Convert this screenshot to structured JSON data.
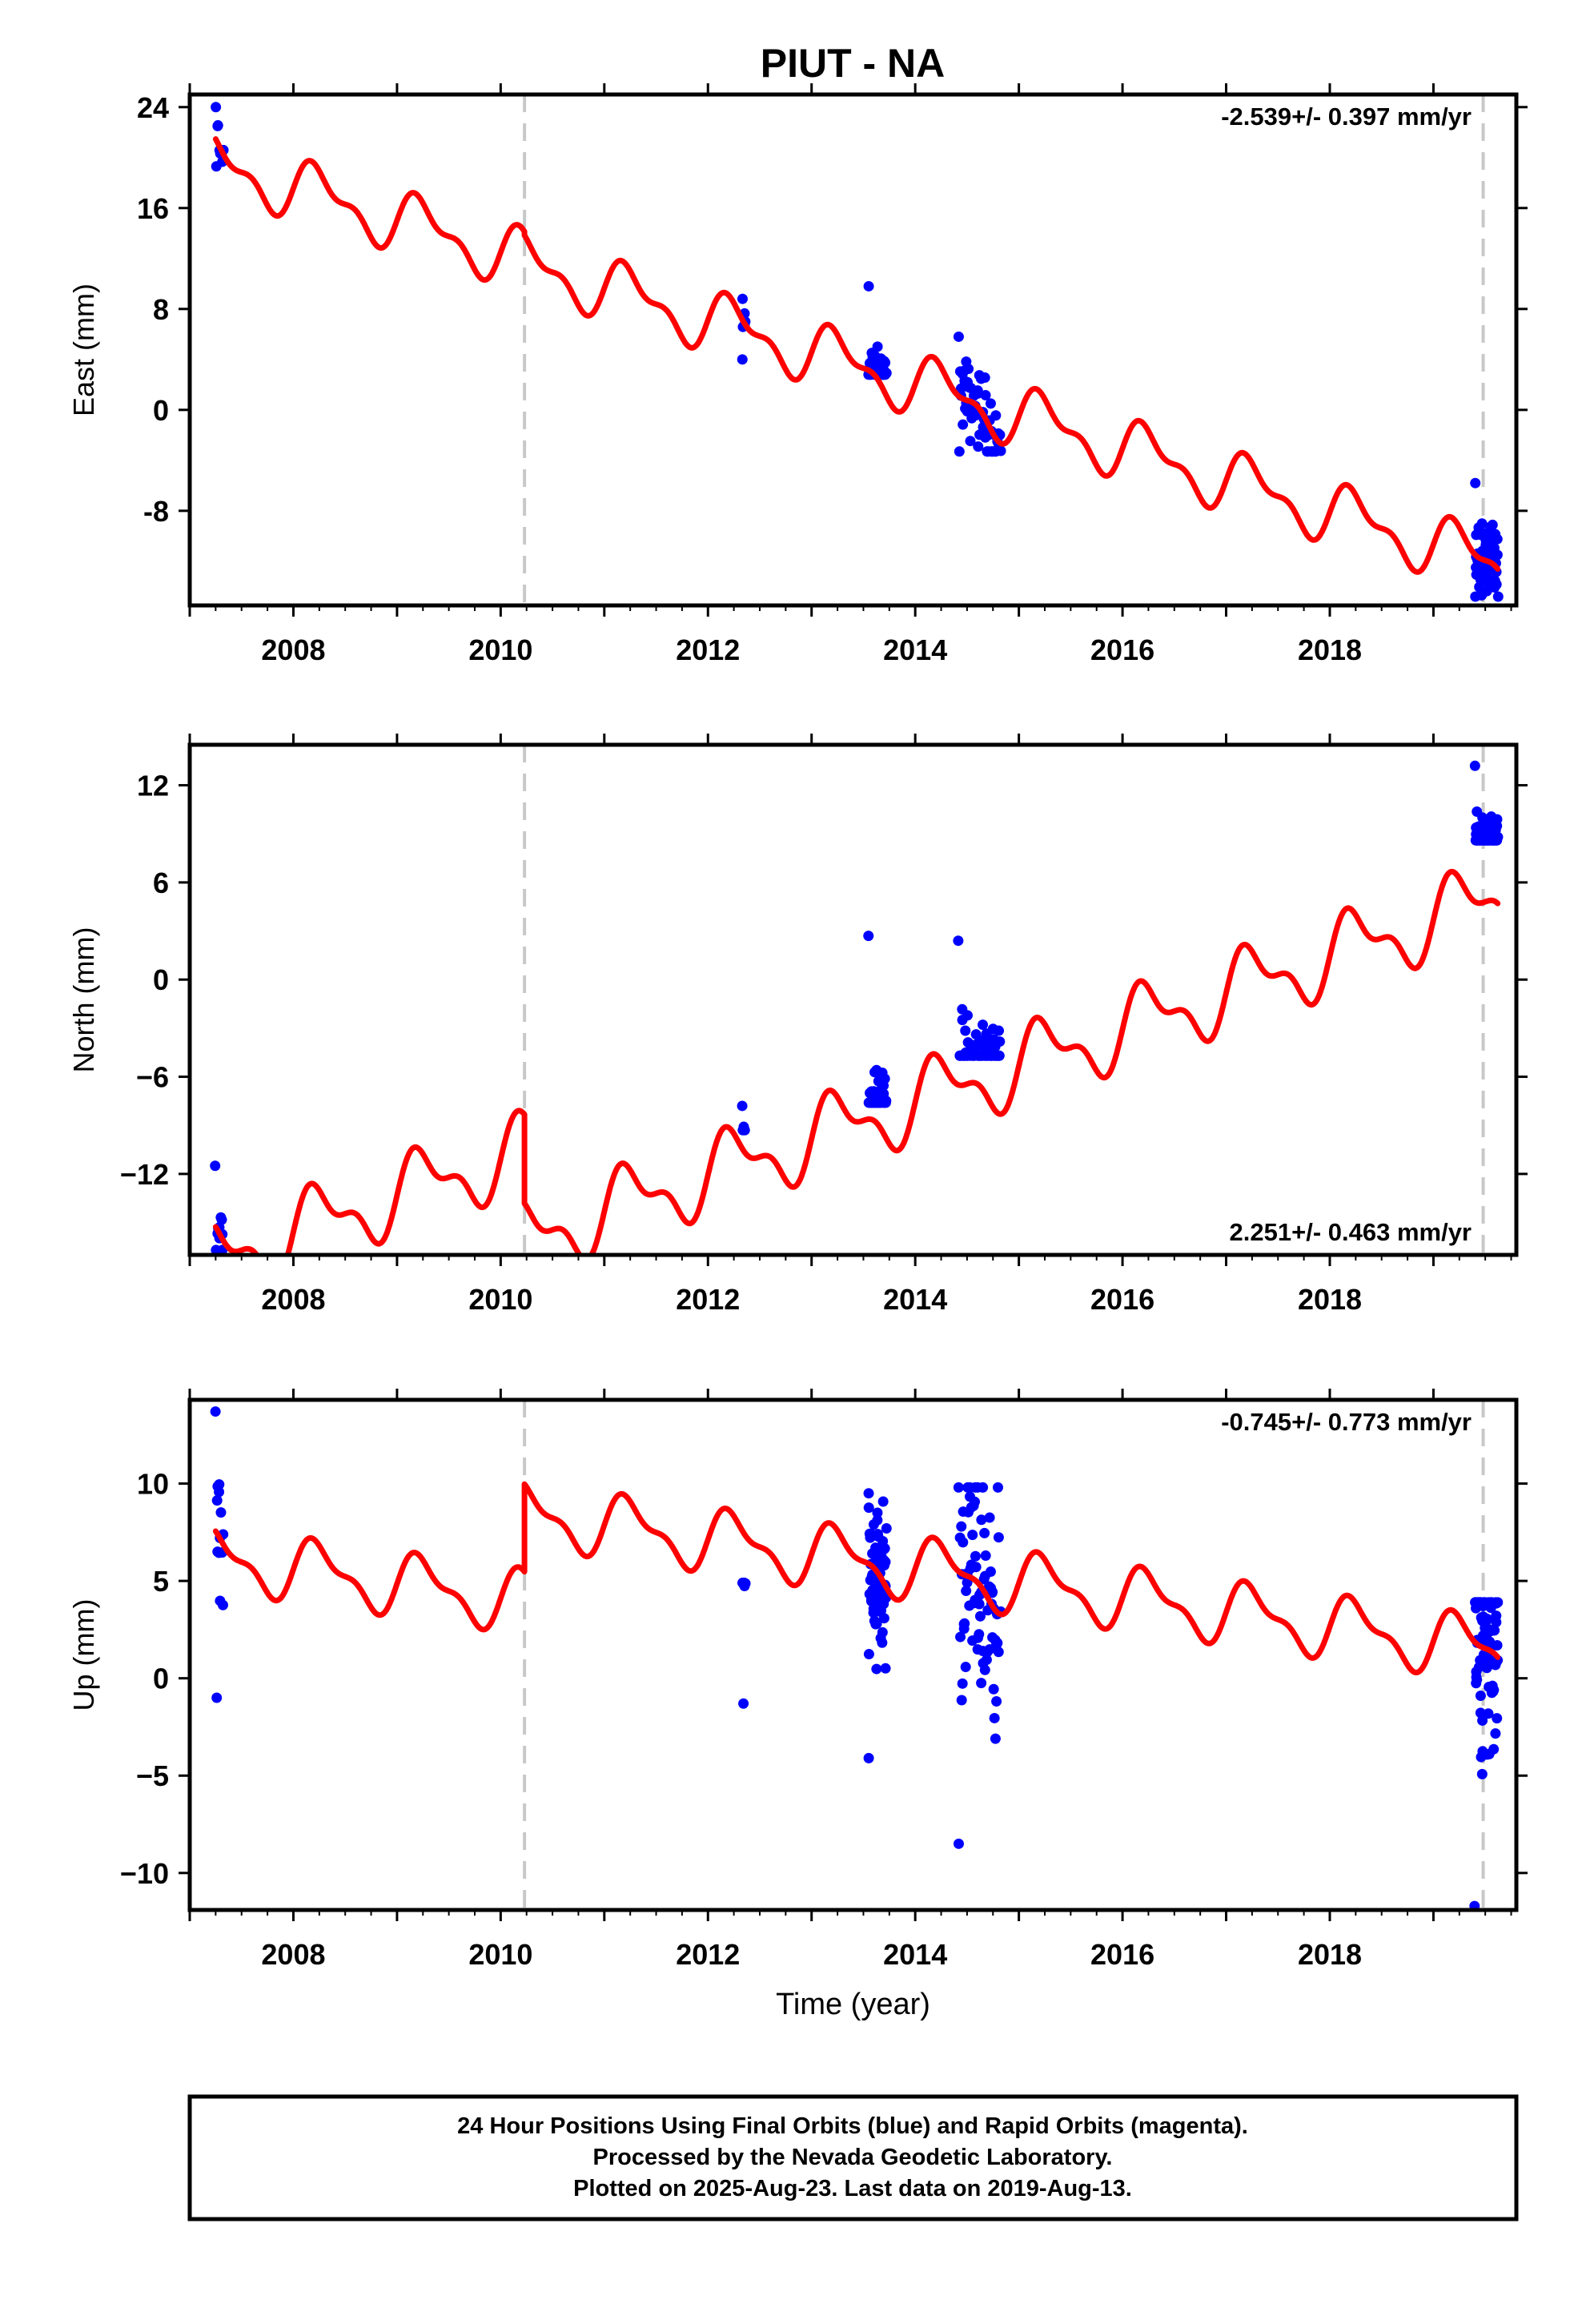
{
  "title": "PIUT - NA",
  "footer": {
    "line1": "24 Hour Positions Using Final Orbits (blue) and Rapid Orbits (magenta).",
    "line2": "Processed by the Nevada Geodetic Laboratory.",
    "line3": "Plotted on 2025-Aug-23. Last data on 2019-Aug-13."
  },
  "colors": {
    "data": "#0000ff",
    "model": "#ff0000",
    "break_line": "#c8c8c8",
    "frame": "#000000"
  },
  "chart_data": [
    {
      "type": "scatter",
      "name": "east",
      "ylabel": "East (mm)",
      "xlabel": "",
      "rate_label": "-2.539+/- 0.397 mm/yr",
      "xlim": [
        2007.0,
        2019.8
      ],
      "ylim": [
        -15.5,
        25
      ],
      "xticks": [
        2008,
        2010,
        2012,
        2014,
        2016,
        2018
      ],
      "xticklabels": [
        "2008",
        "2010",
        "2012",
        "2014",
        "2016",
        "2018"
      ],
      "yticks": [
        -8,
        0,
        8,
        16,
        24
      ],
      "yticklabels": [
        "-8",
        "0",
        "8",
        "16",
        "24"
      ],
      "grid": false,
      "breaks": [
        2010.23,
        2019.48
      ],
      "model": {
        "rate": -2.539,
        "ref_epoch": 2013.5,
        "offset": 3.6,
        "annual_cos": 0.0,
        "annual_sin": 2.0,
        "semi_cos": 0.0,
        "semi_sin": 1.0,
        "steps": [
          {
            "epoch": 2010.23,
            "size": -0.3
          }
        ],
        "segments": [
          [
            2007.25,
            2019.62
          ]
        ]
      },
      "data_groups": [
        {
          "t_start": 2007.25,
          "t_end": 2007.32,
          "n": 9,
          "y_min": 19.3,
          "y_max": 24.0
        },
        {
          "t_start": 2012.33,
          "t_end": 2012.36,
          "n": 6,
          "y_min": 4.0,
          "y_max": 8.8
        },
        {
          "t_start": 2013.55,
          "t_end": 2013.72,
          "n": 40,
          "y_min": 2.8,
          "y_max": 9.8
        },
        {
          "t_start": 2014.42,
          "t_end": 2014.82,
          "n": 60,
          "y_min": -3.3,
          "y_max": 5.8
        },
        {
          "t_start": 2019.4,
          "t_end": 2019.62,
          "n": 60,
          "y_min": -14.8,
          "y_max": -5.8
        }
      ]
    },
    {
      "type": "scatter",
      "name": "north",
      "ylabel": "North (mm)",
      "xlabel": "",
      "rate_label": "2.251+/- 0.463 mm/yr",
      "xlim": [
        2007.0,
        2019.8
      ],
      "ylim": [
        -17,
        14.5
      ],
      "xticks": [
        2008,
        2010,
        2012,
        2014,
        2016,
        2018
      ],
      "xticklabels": [
        "2008",
        "2010",
        "2012",
        "2014",
        "2016",
        "2018"
      ],
      "yticks": [
        -12,
        -6,
        0,
        6,
        12
      ],
      "yticklabels": [
        "−12",
        "−6",
        "0",
        "6",
        "12"
      ],
      "grid": false,
      "breaks": [
        2010.23,
        2019.48
      ],
      "model": {
        "rate": 2.251,
        "ref_epoch": 2013.5,
        "offset": -3.2,
        "annual_cos": 0.0,
        "annual_sin": 2.0,
        "semi_cos": 0.0,
        "semi_sin": 1.0,
        "steps": [
          {
            "epoch": 2010.23,
            "size": -5.5
          }
        ],
        "segments": [
          [
            2007.25,
            2019.62
          ]
        ]
      },
      "data_groups": [
        {
          "t_start": 2007.25,
          "t_end": 2007.32,
          "n": 10,
          "y_min": -16.7,
          "y_max": -11.5
        },
        {
          "t_start": 2012.33,
          "t_end": 2012.36,
          "n": 4,
          "y_min": -9.3,
          "y_max": -7.8
        },
        {
          "t_start": 2013.55,
          "t_end": 2013.72,
          "n": 45,
          "y_min": -7.6,
          "y_max": 2.7
        },
        {
          "t_start": 2014.42,
          "t_end": 2014.82,
          "n": 60,
          "y_min": -4.7,
          "y_max": 2.4
        },
        {
          "t_start": 2019.4,
          "t_end": 2019.62,
          "n": 70,
          "y_min": 8.6,
          "y_max": 13.2
        }
      ]
    },
    {
      "type": "scatter",
      "name": "up",
      "ylabel": "Up (mm)",
      "xlabel": "Time (year)",
      "rate_label": "-0.745+/- 0.773 mm/yr",
      "xlim": [
        2007.0,
        2019.8
      ],
      "ylim": [
        -11.9,
        14.3
      ],
      "xticks": [
        2008,
        2010,
        2012,
        2014,
        2016,
        2018
      ],
      "xticklabels": [
        "2008",
        "2010",
        "2012",
        "2014",
        "2016",
        "2018"
      ],
      "yticks": [
        -10,
        -5,
        0,
        5,
        10
      ],
      "yticklabels": [
        "−10",
        "−5",
        "0",
        "5",
        "10"
      ],
      "grid": false,
      "breaks": [
        2010.23,
        2019.48
      ],
      "model": {
        "rate": -0.745,
        "ref_epoch": 2013.5,
        "offset": 1.5,
        "annual_cos": 0.0,
        "annual_sin": 1.4,
        "semi_cos": 0.0,
        "semi_sin": 0.6,
        "steps": [
          {
            "epoch": 2010.23,
            "size": 4.5
          }
        ],
        "segments": [
          [
            2007.25,
            2019.62
          ]
        ]
      },
      "data_groups": [
        {
          "t_start": 2007.25,
          "t_end": 2007.32,
          "n": 14,
          "y_min": -1.0,
          "y_max": 13.7
        },
        {
          "t_start": 2012.33,
          "t_end": 2012.36,
          "n": 5,
          "y_min": -1.3,
          "y_max": 4.9
        },
        {
          "t_start": 2013.55,
          "t_end": 2013.72,
          "n": 70,
          "y_min": -4.1,
          "y_max": 9.5
        },
        {
          "t_start": 2014.42,
          "t_end": 2014.82,
          "n": 80,
          "y_min": -8.5,
          "y_max": 9.8
        },
        {
          "t_start": 2019.4,
          "t_end": 2019.62,
          "n": 90,
          "y_min": -11.7,
          "y_max": 3.9
        }
      ]
    }
  ]
}
